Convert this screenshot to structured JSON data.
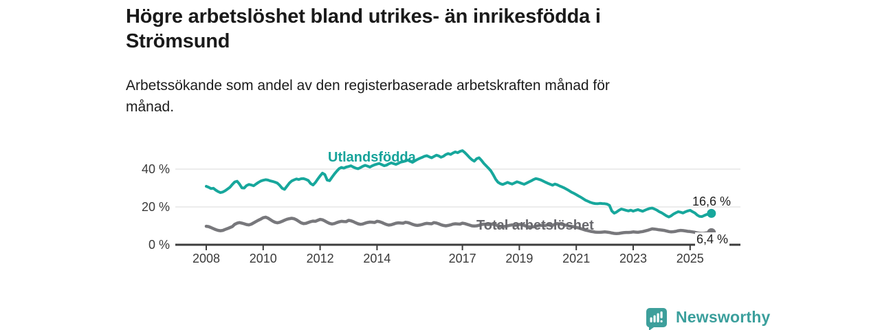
{
  "text": {
    "title_lines": [
      "Högre arbetslöshet bland utrikes- än inrikesfödda i",
      "Strömsund"
    ],
    "subtitle_lines": [
      "Arbetssökande som andel av den registerbaserade arbetskraften månad för",
      "månad."
    ]
  },
  "branding": {
    "name": "Newsworthy",
    "icon": "newsworthy-chart-bubble-icon",
    "color": "#3d9f9b"
  },
  "chart_data": {
    "type": "line",
    "title": "Högre arbetslöshet bland utrikes- än inrikesfödda i Strömsund",
    "subtitle": "Arbetssökande som andel av den registerbaserade arbetskraften månad för månad.",
    "unit": "percent",
    "x_start": "2008-01",
    "x_end": "2025-10",
    "grid": "horizontal",
    "ylim": [
      0,
      52
    ],
    "y_ticks": [
      {
        "value": 0,
        "label": "0 %"
      },
      {
        "value": 20,
        "label": "20 %"
      },
      {
        "value": 40,
        "label": "40 %"
      }
    ],
    "x_ticks": [
      {
        "year": 2008,
        "label": "2008"
      },
      {
        "year": 2010,
        "label": "2010"
      },
      {
        "year": 2012,
        "label": "2012"
      },
      {
        "year": 2014,
        "label": "2014"
      },
      {
        "year": 2017,
        "label": "2017"
      },
      {
        "year": 2019,
        "label": "2019"
      },
      {
        "year": 2021,
        "label": "2021"
      },
      {
        "year": 2023,
        "label": "2023"
      },
      {
        "year": 2025,
        "label": "2025"
      }
    ],
    "series": [
      {
        "name": "Utlandsfödda",
        "color": "#17a79c",
        "line_width": 4,
        "end_value": 16.6,
        "end_label": "16,6 %",
        "values": [
          30.9,
          30.4,
          29.7,
          29.9,
          28.9,
          28.1,
          27.6,
          27.9,
          28.6,
          29.5,
          30.4,
          31.9,
          33.2,
          33.6,
          32.1,
          30.1,
          30.0,
          31.3,
          31.9,
          31.6,
          31.2,
          32.1,
          33.0,
          33.7,
          34.1,
          34.4,
          34.2,
          33.8,
          33.5,
          33.1,
          32.6,
          31.4,
          29.9,
          29.3,
          30.9,
          32.6,
          33.7,
          34.3,
          34.8,
          34.5,
          34.9,
          35.0,
          34.6,
          34.0,
          32.4,
          31.6,
          32.9,
          34.7,
          36.4,
          37.9,
          37.1,
          34.2,
          33.9,
          35.7,
          37.4,
          38.9,
          40.2,
          40.9,
          40.5,
          41.1,
          41.4,
          41.8,
          41.1,
          40.5,
          40.2,
          40.8,
          41.5,
          42.0,
          41.6,
          41.1,
          41.8,
          42.3,
          42.7,
          43.0,
          42.4,
          41.8,
          42.1,
          42.8,
          43.3,
          42.9,
          42.5,
          43.1,
          43.7,
          44.0,
          44.3,
          44.8,
          44.1,
          43.6,
          44.4,
          45.1,
          45.7,
          46.2,
          46.8,
          47.1,
          46.5,
          46.0,
          46.7,
          47.4,
          47.0,
          46.3,
          46.8,
          47.7,
          48.2,
          47.8,
          48.5,
          49.1,
          48.7,
          49.4,
          49.8,
          48.8,
          47.5,
          46.1,
          45.0,
          44.2,
          45.5,
          46.0,
          44.7,
          43.1,
          41.8,
          40.5,
          39.1,
          37.0,
          34.7,
          33.1,
          32.3,
          31.9,
          32.4,
          33.0,
          32.5,
          32.1,
          32.7,
          33.3,
          32.9,
          32.4,
          32.0,
          32.6,
          33.2,
          33.8,
          34.5,
          35.0,
          34.7,
          34.3,
          33.7,
          33.1,
          32.5,
          32.0,
          31.5,
          32.1,
          31.7,
          31.1,
          30.6,
          30.0,
          29.3,
          28.6,
          27.8,
          27.2,
          26.5,
          25.8,
          25.1,
          24.3,
          23.5,
          23.0,
          22.4,
          22.0,
          21.8,
          21.7,
          21.9,
          21.8,
          21.7,
          21.5,
          20.8,
          17.9,
          16.7,
          17.3,
          18.2,
          18.9,
          18.6,
          18.2,
          17.9,
          18.3,
          17.8,
          18.2,
          18.6,
          18.1,
          17.7,
          18.3,
          18.8,
          19.2,
          19.4,
          18.9,
          18.3,
          17.5,
          16.9,
          16.1,
          15.3,
          14.7,
          15.3,
          16.2,
          16.9,
          17.5,
          17.2,
          16.8,
          17.4,
          17.9,
          18.2,
          17.5,
          16.8,
          15.7,
          15.0,
          14.9,
          15.5,
          16.0,
          16.3,
          16.6
        ]
      },
      {
        "name": "Total arbetslöshet",
        "color": "#78787c",
        "line_width": 4.5,
        "end_value": 6.4,
        "end_label": "6,4 %",
        "values": [
          9.8,
          9.6,
          9.1,
          8.5,
          8.0,
          7.6,
          7.4,
          7.6,
          8.1,
          8.6,
          9.1,
          9.6,
          10.8,
          11.4,
          11.7,
          11.4,
          11.1,
          10.7,
          10.5,
          10.9,
          11.6,
          12.3,
          13.0,
          13.6,
          14.3,
          14.6,
          14.1,
          13.3,
          12.5,
          11.9,
          11.6,
          11.9,
          12.4,
          13.0,
          13.5,
          13.8,
          14.0,
          13.8,
          13.2,
          12.4,
          11.6,
          11.2,
          11.3,
          11.8,
          12.2,
          12.5,
          12.4,
          12.9,
          13.4,
          13.2,
          12.6,
          11.9,
          11.3,
          11.0,
          11.2,
          11.7,
          12.1,
          12.4,
          12.3,
          12.2,
          12.9,
          12.7,
          12.2,
          11.6,
          11.1,
          10.8,
          11.0,
          11.4,
          11.8,
          12.0,
          11.9,
          11.8,
          12.4,
          12.2,
          11.8,
          11.2,
          10.7,
          10.4,
          10.6,
          11.0,
          11.4,
          11.6,
          11.5,
          11.4,
          11.9,
          11.7,
          11.3,
          10.8,
          10.4,
          10.2,
          10.4,
          10.7,
          11.1,
          11.3,
          11.2,
          11.1,
          11.7,
          11.5,
          11.1,
          10.6,
          10.2,
          10.0,
          10.2,
          10.5,
          10.9,
          11.1,
          11.0,
          10.9,
          11.4,
          11.2,
          10.8,
          10.4,
          10.0,
          9.9,
          10.0,
          10.3,
          10.7,
          10.9,
          10.8,
          10.7,
          11.0,
          10.8,
          10.5,
          10.1,
          9.7,
          9.6,
          9.7,
          10.0,
          10.3,
          10.5,
          10.4,
          10.3,
          10.8,
          10.6,
          10.2,
          9.8,
          9.5,
          9.4,
          9.5,
          9.8,
          10.1,
          10.3,
          10.2,
          10.1,
          10.6,
          10.4,
          10.2,
          10.8,
          11.2,
          11.0,
          10.8,
          10.5,
          10.2,
          9.9,
          9.7,
          9.5,
          9.2,
          8.9,
          8.5,
          8.1,
          7.7,
          7.4,
          7.1,
          6.9,
          6.7,
          6.6,
          6.6,
          6.7,
          6.8,
          6.7,
          6.5,
          6.2,
          6.0,
          5.9,
          6.0,
          6.2,
          6.4,
          6.5,
          6.5,
          6.6,
          6.8,
          6.7,
          6.6,
          6.8,
          7.0,
          7.3,
          7.6,
          8.0,
          8.4,
          8.3,
          8.1,
          7.9,
          7.8,
          7.6,
          7.3,
          7.0,
          6.8,
          6.9,
          7.1,
          7.4,
          7.6,
          7.5,
          7.3,
          7.1,
          7.0,
          6.8,
          6.6,
          6.3,
          6.1,
          6.0,
          6.1,
          6.3,
          6.4,
          6.4
        ]
      }
    ]
  }
}
